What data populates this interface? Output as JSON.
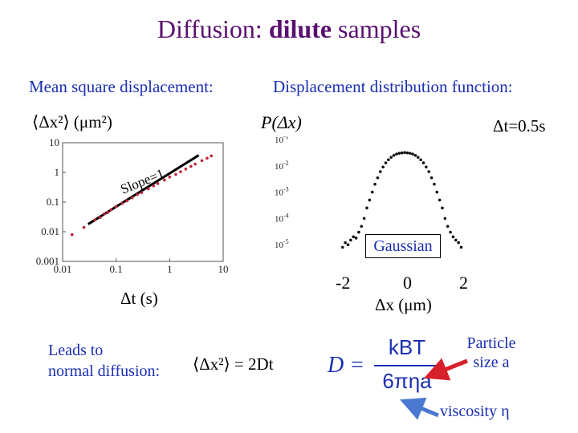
{
  "slide": {
    "title_plain": "Diffusion: ",
    "title_bold": "dilute",
    "title_rest": " samples",
    "left_heading": "Mean square displacement:",
    "right_heading": "Displacement distribution function:",
    "left_ylabel": "⟨Δx²⟩ (μm²)",
    "right_ylabel": "P(Δx)",
    "dt_label": "Δt=0.5s",
    "left_xlabel": "Δt (s)",
    "right_xlabel": "Δx (μm)",
    "slope_label": "Slope=1",
    "gaussian_label": "Gaussian",
    "leads_line1": "Leads to",
    "leads_line2": "normal diffusion:",
    "equation": "⟨Δx²⟩ = 2Dt",
    "formula_D": "D =",
    "formula_num": "kBT",
    "formula_den": "6πηa",
    "particle_label_1": "Particle",
    "particle_label_2": "size a",
    "viscosity_label": "viscosity η",
    "colors": {
      "title": "#5a1070",
      "text": "#1a2fb3",
      "arrow_red": "#d8202a",
      "arrow_blue": "#4a78d0",
      "data": "#c0243a"
    }
  },
  "chart_data": [
    {
      "type": "scatter",
      "title": "",
      "xlabel": "Δt (s)",
      "ylabel": "⟨Δx²⟩ (μm²)",
      "x_scale": "log",
      "y_scale": "log",
      "xlim": [
        0.01,
        10
      ],
      "ylim": [
        0.001,
        10
      ],
      "x_ticks": [
        "0.01",
        "0.1",
        "1",
        "10"
      ],
      "y_ticks": [
        "0.001",
        "0.01",
        "0.1",
        "1",
        "10"
      ],
      "series": [
        {
          "x": [
            0.015,
            0.025,
            0.04,
            0.05,
            0.06,
            0.07,
            0.08,
            0.1,
            0.13,
            0.16,
            0.2,
            0.25,
            0.3,
            0.4,
            0.5,
            0.6,
            0.8,
            1.0,
            1.3,
            1.6,
            2.0,
            2.5,
            3.0,
            4.0,
            5.0,
            6.0
          ],
          "y": [
            0.008,
            0.014,
            0.025,
            0.03,
            0.04,
            0.045,
            0.055,
            0.07,
            0.09,
            0.11,
            0.14,
            0.18,
            0.21,
            0.28,
            0.35,
            0.42,
            0.55,
            0.7,
            0.85,
            1.05,
            1.3,
            1.6,
            1.9,
            2.5,
            3.0,
            3.6
          ]
        }
      ],
      "fit_line": {
        "x": [
          0.03,
          3.5
        ],
        "y": [
          0.018,
          3.8
        ]
      }
    },
    {
      "type": "scatter",
      "title": "",
      "xlabel": "Δx (μm)",
      "ylabel": "P(Δx)",
      "y_scale": "log",
      "xlim": [
        -2.8,
        2.8
      ],
      "ylim": [
        1e-06,
        0.1
      ],
      "x_ticks": [
        "-2",
        "0",
        "2"
      ],
      "y_ticks": [
        "10-1",
        "10-2",
        "10-3",
        "10-4",
        "10-5"
      ],
      "series": [
        {
          "x": [
            -2.3,
            -2.2,
            -2.1,
            -2.0,
            -1.9,
            -1.8,
            -1.7,
            -1.6,
            -1.5,
            -1.4,
            -1.3,
            -1.2,
            -1.1,
            -1.0,
            -0.9,
            -0.8,
            -0.7,
            -0.6,
            -0.5,
            -0.4,
            -0.3,
            -0.2,
            -0.1,
            0.0,
            0.1,
            0.2,
            0.3,
            0.4,
            0.5,
            0.6,
            0.7,
            0.8,
            0.9,
            1.0,
            1.1,
            1.2,
            1.3,
            1.4,
            1.5,
            1.6,
            1.7,
            1.8,
            1.9,
            2.0,
            2.1
          ],
          "y": [
            8e-06,
            1.2e-05,
            1e-05,
            1.5e-05,
            2e-05,
            1.8e-05,
            3e-05,
            5e-05,
            0.0001,
            0.00025,
            0.0005,
            0.001,
            0.002,
            0.0035,
            0.006,
            0.009,
            0.013,
            0.017,
            0.021,
            0.025,
            0.028,
            0.03,
            0.031,
            0.032,
            0.031,
            0.03,
            0.028,
            0.025,
            0.021,
            0.017,
            0.013,
            0.009,
            0.006,
            0.0035,
            0.002,
            0.001,
            0.0005,
            0.00025,
            0.0001,
            5e-05,
            3e-05,
            2e-05,
            1.5e-05,
            1.2e-05,
            8e-06
          ]
        }
      ]
    }
  ]
}
